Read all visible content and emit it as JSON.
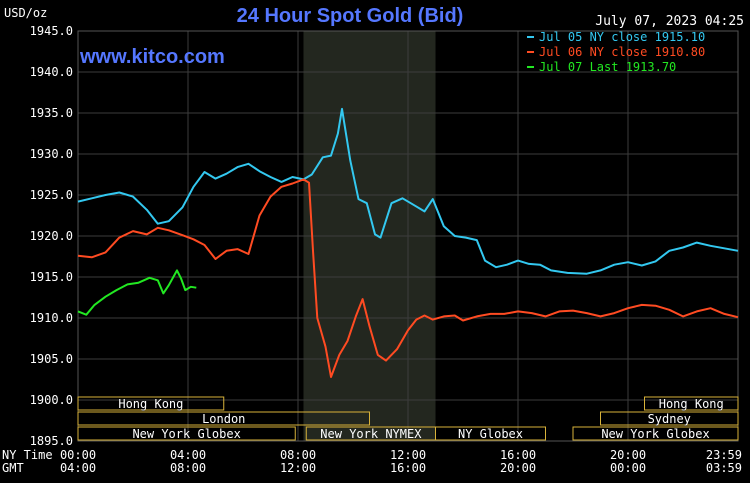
{
  "chart_data": {
    "type": "line",
    "title": "24 Hour Spot Gold (Bid)",
    "ylabel": "USD/oz",
    "timestamp": "July 07, 2023 04:25",
    "watermark": "www.kitco.com",
    "ylim": [
      1895,
      1945
    ],
    "y_ticks": [
      "1945.0",
      "1940.0",
      "1935.0",
      "1930.0",
      "1925.0",
      "1920.0",
      "1915.0",
      "1910.0",
      "1905.0",
      "1900.0",
      "1895.0"
    ],
    "x_axis_rows": [
      {
        "label": "NY Time",
        "ticks": [
          "00:00",
          "04:00",
          "08:00",
          "12:00",
          "16:00",
          "20:00",
          "23:59"
        ]
      },
      {
        "label": "GMT",
        "ticks": [
          "04:00",
          "08:00",
          "12:00",
          "16:00",
          "20:00",
          "00:00",
          "03:59"
        ]
      }
    ],
    "grid": true,
    "legend_position": "top-right",
    "highlight_band_ny_hours": [
      8.2,
      13.0
    ],
    "sessions": [
      {
        "label": "Hong Kong",
        "row": 1,
        "start": 0.0,
        "end": 5.3
      },
      {
        "label": "London",
        "row": 2,
        "start": 0.0,
        "end": 10.6
      },
      {
        "label": "New York Globex",
        "row": 3,
        "start": 0.0,
        "end": 7.9
      },
      {
        "label": "New York NYMEX",
        "row": 3,
        "start": 8.3,
        "end": 13.0
      },
      {
        "label": "NY Globex",
        "row": 3,
        "start": 13.0,
        "end": 17.0
      },
      {
        "label": "Hong Kong",
        "row": 1,
        "start": 20.6,
        "end": 24.0
      },
      {
        "label": "Sydney",
        "row": 2,
        "start": 19.0,
        "end": 24.0
      },
      {
        "label": "New York Globex",
        "row": 3,
        "start": 18.0,
        "end": 24.0
      }
    ],
    "series": [
      {
        "name": "Jul 05 NY close 1915.10",
        "color": "#33c8f0",
        "points": [
          [
            0.0,
            1924.2
          ],
          [
            0.5,
            1924.6
          ],
          [
            1.0,
            1925.0
          ],
          [
            1.5,
            1925.3
          ],
          [
            2.0,
            1924.8
          ],
          [
            2.5,
            1923.2
          ],
          [
            2.9,
            1921.5
          ],
          [
            3.3,
            1921.8
          ],
          [
            3.8,
            1923.5
          ],
          [
            4.2,
            1926.0
          ],
          [
            4.6,
            1927.8
          ],
          [
            5.0,
            1927.0
          ],
          [
            5.4,
            1927.6
          ],
          [
            5.8,
            1928.4
          ],
          [
            6.2,
            1928.8
          ],
          [
            6.6,
            1927.9
          ],
          [
            7.0,
            1927.2
          ],
          [
            7.4,
            1926.6
          ],
          [
            7.8,
            1927.2
          ],
          [
            8.2,
            1926.9
          ],
          [
            8.5,
            1927.5
          ],
          [
            8.9,
            1929.6
          ],
          [
            9.2,
            1929.8
          ],
          [
            9.45,
            1932.5
          ],
          [
            9.6,
            1935.5
          ],
          [
            9.9,
            1929.2
          ],
          [
            10.2,
            1924.5
          ],
          [
            10.5,
            1924.0
          ],
          [
            10.8,
            1920.2
          ],
          [
            11.0,
            1919.8
          ],
          [
            11.4,
            1924.0
          ],
          [
            11.8,
            1924.6
          ],
          [
            12.2,
            1923.8
          ],
          [
            12.6,
            1923.0
          ],
          [
            12.9,
            1924.5
          ],
          [
            13.3,
            1921.2
          ],
          [
            13.7,
            1920.0
          ],
          [
            14.1,
            1919.8
          ],
          [
            14.5,
            1919.5
          ],
          [
            14.8,
            1917.0
          ],
          [
            15.2,
            1916.2
          ],
          [
            15.6,
            1916.5
          ],
          [
            16.0,
            1917.0
          ],
          [
            16.4,
            1916.6
          ],
          [
            16.8,
            1916.5
          ],
          [
            17.2,
            1915.8
          ],
          [
            17.8,
            1915.5
          ],
          [
            18.5,
            1915.4
          ],
          [
            19.0,
            1915.8
          ],
          [
            19.5,
            1916.5
          ],
          [
            20.0,
            1916.8
          ],
          [
            20.5,
            1916.4
          ],
          [
            21.0,
            1916.9
          ],
          [
            21.5,
            1918.2
          ],
          [
            22.0,
            1918.6
          ],
          [
            22.5,
            1919.2
          ],
          [
            23.0,
            1918.8
          ],
          [
            23.5,
            1918.5
          ],
          [
            24.0,
            1918.2
          ]
        ]
      },
      {
        "name": "Jul 06 NY close 1910.80",
        "color": "#ff4b22",
        "points": [
          [
            0.0,
            1917.6
          ],
          [
            0.5,
            1917.4
          ],
          [
            1.0,
            1918.0
          ],
          [
            1.5,
            1919.8
          ],
          [
            2.0,
            1920.6
          ],
          [
            2.5,
            1920.2
          ],
          [
            2.9,
            1921.0
          ],
          [
            3.3,
            1920.7
          ],
          [
            3.8,
            1920.1
          ],
          [
            4.2,
            1919.6
          ],
          [
            4.6,
            1918.9
          ],
          [
            5.0,
            1917.2
          ],
          [
            5.4,
            1918.2
          ],
          [
            5.8,
            1918.4
          ],
          [
            6.2,
            1917.8
          ],
          [
            6.6,
            1922.5
          ],
          [
            7.0,
            1924.8
          ],
          [
            7.4,
            1926.0
          ],
          [
            7.8,
            1926.4
          ],
          [
            8.2,
            1926.9
          ],
          [
            8.4,
            1926.5
          ],
          [
            8.55,
            1918.0
          ],
          [
            8.7,
            1910.0
          ],
          [
            9.0,
            1906.5
          ],
          [
            9.2,
            1902.8
          ],
          [
            9.5,
            1905.5
          ],
          [
            9.8,
            1907.2
          ],
          [
            10.1,
            1910.2
          ],
          [
            10.35,
            1912.3
          ],
          [
            10.6,
            1909.0
          ],
          [
            10.9,
            1905.5
          ],
          [
            11.2,
            1904.8
          ],
          [
            11.6,
            1906.2
          ],
          [
            12.0,
            1908.5
          ],
          [
            12.3,
            1909.8
          ],
          [
            12.6,
            1910.3
          ],
          [
            12.9,
            1909.8
          ],
          [
            13.3,
            1910.2
          ],
          [
            13.7,
            1910.3
          ],
          [
            14.0,
            1909.7
          ],
          [
            14.5,
            1910.2
          ],
          [
            15.0,
            1910.5
          ],
          [
            15.5,
            1910.5
          ],
          [
            16.0,
            1910.8
          ],
          [
            16.5,
            1910.6
          ],
          [
            17.0,
            1910.2
          ],
          [
            17.5,
            1910.8
          ],
          [
            18.0,
            1910.9
          ],
          [
            18.5,
            1910.6
          ],
          [
            19.0,
            1910.2
          ],
          [
            19.5,
            1910.6
          ],
          [
            20.0,
            1911.2
          ],
          [
            20.5,
            1911.6
          ],
          [
            21.0,
            1911.5
          ],
          [
            21.5,
            1911.0
          ],
          [
            22.0,
            1910.2
          ],
          [
            22.5,
            1910.8
          ],
          [
            23.0,
            1911.2
          ],
          [
            23.5,
            1910.5
          ],
          [
            24.0,
            1910.1
          ]
        ]
      },
      {
        "name": "Jul 07 Last 1913.70",
        "color": "#22e822",
        "points": [
          [
            0.0,
            1910.8
          ],
          [
            0.3,
            1910.4
          ],
          [
            0.6,
            1911.6
          ],
          [
            1.0,
            1912.6
          ],
          [
            1.4,
            1913.4
          ],
          [
            1.8,
            1914.1
          ],
          [
            2.2,
            1914.3
          ],
          [
            2.6,
            1914.9
          ],
          [
            2.9,
            1914.6
          ],
          [
            3.1,
            1913.0
          ],
          [
            3.3,
            1914.0
          ],
          [
            3.6,
            1915.8
          ],
          [
            3.75,
            1914.8
          ],
          [
            3.9,
            1913.4
          ],
          [
            4.1,
            1913.8
          ],
          [
            4.3,
            1913.7
          ]
        ]
      }
    ]
  }
}
